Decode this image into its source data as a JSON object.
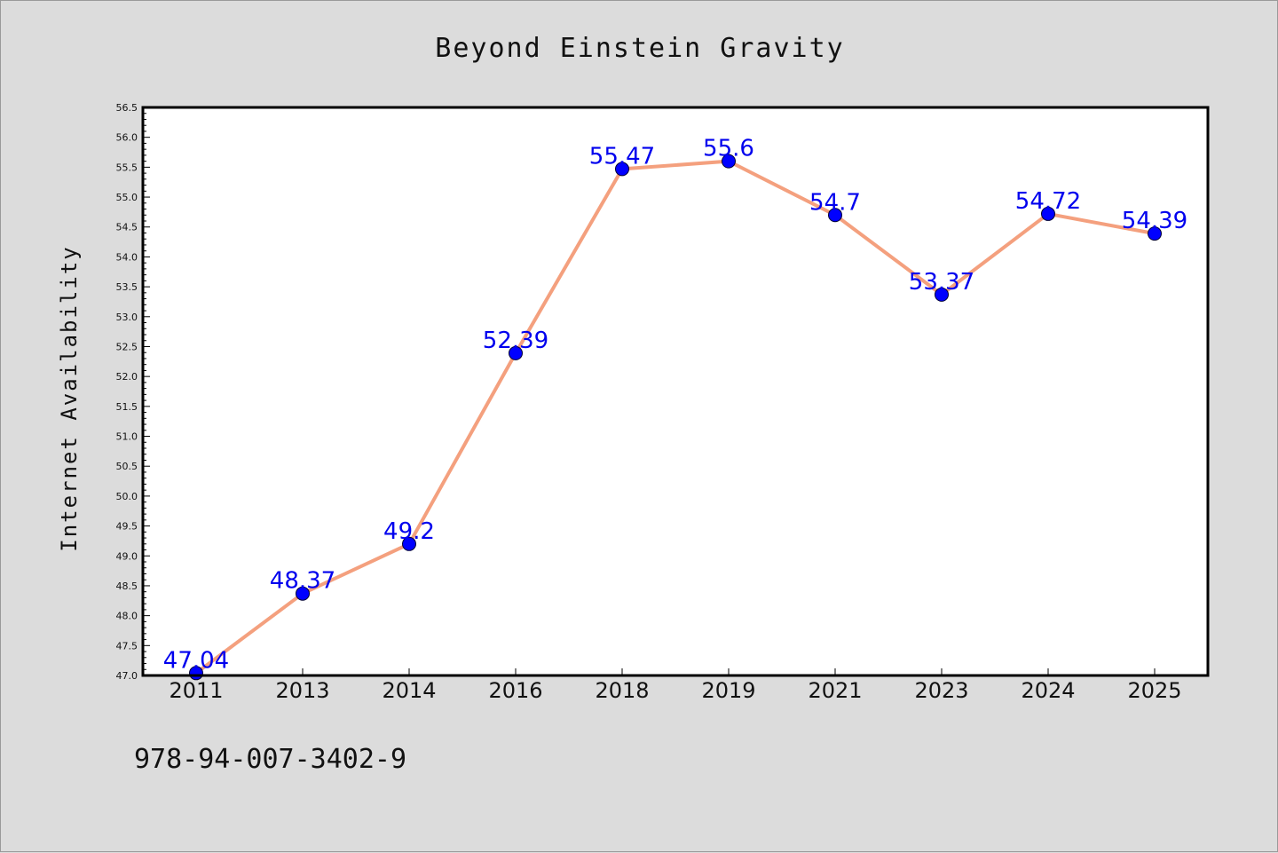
{
  "footer_text": "978-94-007-3402-9",
  "colors": {
    "background": "#dcdcdc",
    "plot_background": "#ffffff",
    "line": "#f4a07e",
    "marker": "#0000ff",
    "data_label": "#0000ee"
  },
  "chart_data": {
    "type": "line",
    "title": "Beyond Einstein Gravity",
    "xlabel": "",
    "ylabel": "Internet Availability",
    "categories": [
      "2011",
      "2013",
      "2014",
      "2016",
      "2018",
      "2019",
      "2021",
      "2023",
      "2024",
      "2025"
    ],
    "series": [
      {
        "values": [
          47.04,
          48.37,
          49.2,
          52.39,
          55.47,
          55.6,
          54.7,
          53.37,
          54.72,
          54.39
        ],
        "labels": [
          "47.04",
          "48.37",
          "49.2",
          "52.39",
          "55.47",
          "55.6",
          "54.7",
          "53.37",
          "54.72",
          "54.39"
        ]
      }
    ],
    "ylim": [
      47.0,
      56.5
    ],
    "yticks": [
      "47.0",
      "47.5",
      "48.0",
      "48.5",
      "49.0",
      "49.5",
      "50.0",
      "50.5",
      "51.0",
      "51.5",
      "52.0",
      "52.5",
      "53.0",
      "53.5",
      "54.0",
      "54.5",
      "55.0",
      "55.5",
      "56.0",
      "56.5"
    ],
    "grid": false,
    "legend": "none"
  }
}
